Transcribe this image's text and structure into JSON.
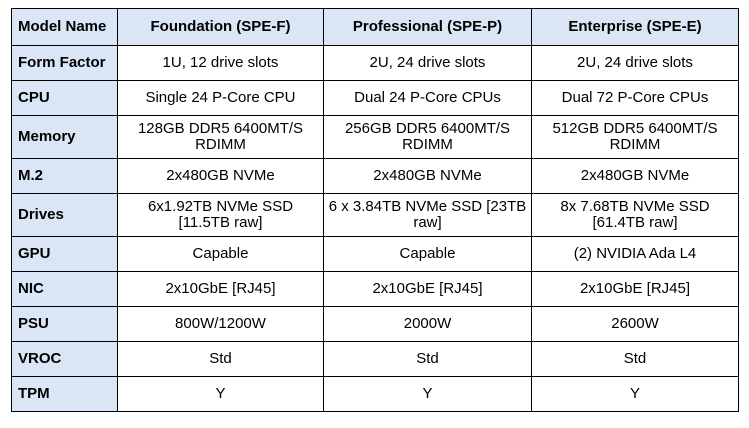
{
  "table": {
    "corner_header": "Model Name",
    "columns": [
      "Foundation (SPE-F)",
      "Professional (SPE-P)",
      "Enterprise (SPE-E)"
    ],
    "rows": [
      {
        "label": "Form Factor",
        "cells": [
          "1U, 12 drive slots",
          "2U, 24 drive slots",
          "2U, 24 drive slots"
        ]
      },
      {
        "label": "CPU",
        "cells": [
          "Single 24 P-Core CPU",
          "Dual 24 P-Core CPUs",
          "Dual 72 P-Core CPUs"
        ]
      },
      {
        "label": "Memory",
        "cells": [
          "128GB DDR5 6400MT/S RDIMM",
          "256GB DDR5 6400MT/S RDIMM",
          "512GB DDR5 6400MT/S RDIMM"
        ]
      },
      {
        "label": "M.2",
        "cells": [
          "2x480GB NVMe",
          "2x480GB NVMe",
          "2x480GB NVMe"
        ]
      },
      {
        "label": "Drives",
        "cells": [
          "6x1.92TB NVMe SSD [11.5TB raw]",
          "6 x 3.84TB NVMe SSD [23TB raw]",
          "8x 7.68TB NVMe SSD [61.4TB raw]"
        ]
      },
      {
        "label": "GPU",
        "cells": [
          "Capable",
          "Capable",
          "(2) NVIDIA Ada L4"
        ]
      },
      {
        "label": "NIC",
        "cells": [
          "2x10GbE [RJ45]",
          "2x10GbE [RJ45]",
          "2x10GbE [RJ45]"
        ]
      },
      {
        "label": "PSU",
        "cells": [
          "800W/1200W",
          "2000W",
          "2600W"
        ]
      },
      {
        "label": "VROC",
        "cells": [
          "Std",
          "Std",
          "Std"
        ]
      },
      {
        "label": "TPM",
        "cells": [
          "Y",
          "Y",
          "Y"
        ]
      }
    ]
  },
  "colors": {
    "header_fill": "#dae6f5",
    "border": "#000000"
  }
}
